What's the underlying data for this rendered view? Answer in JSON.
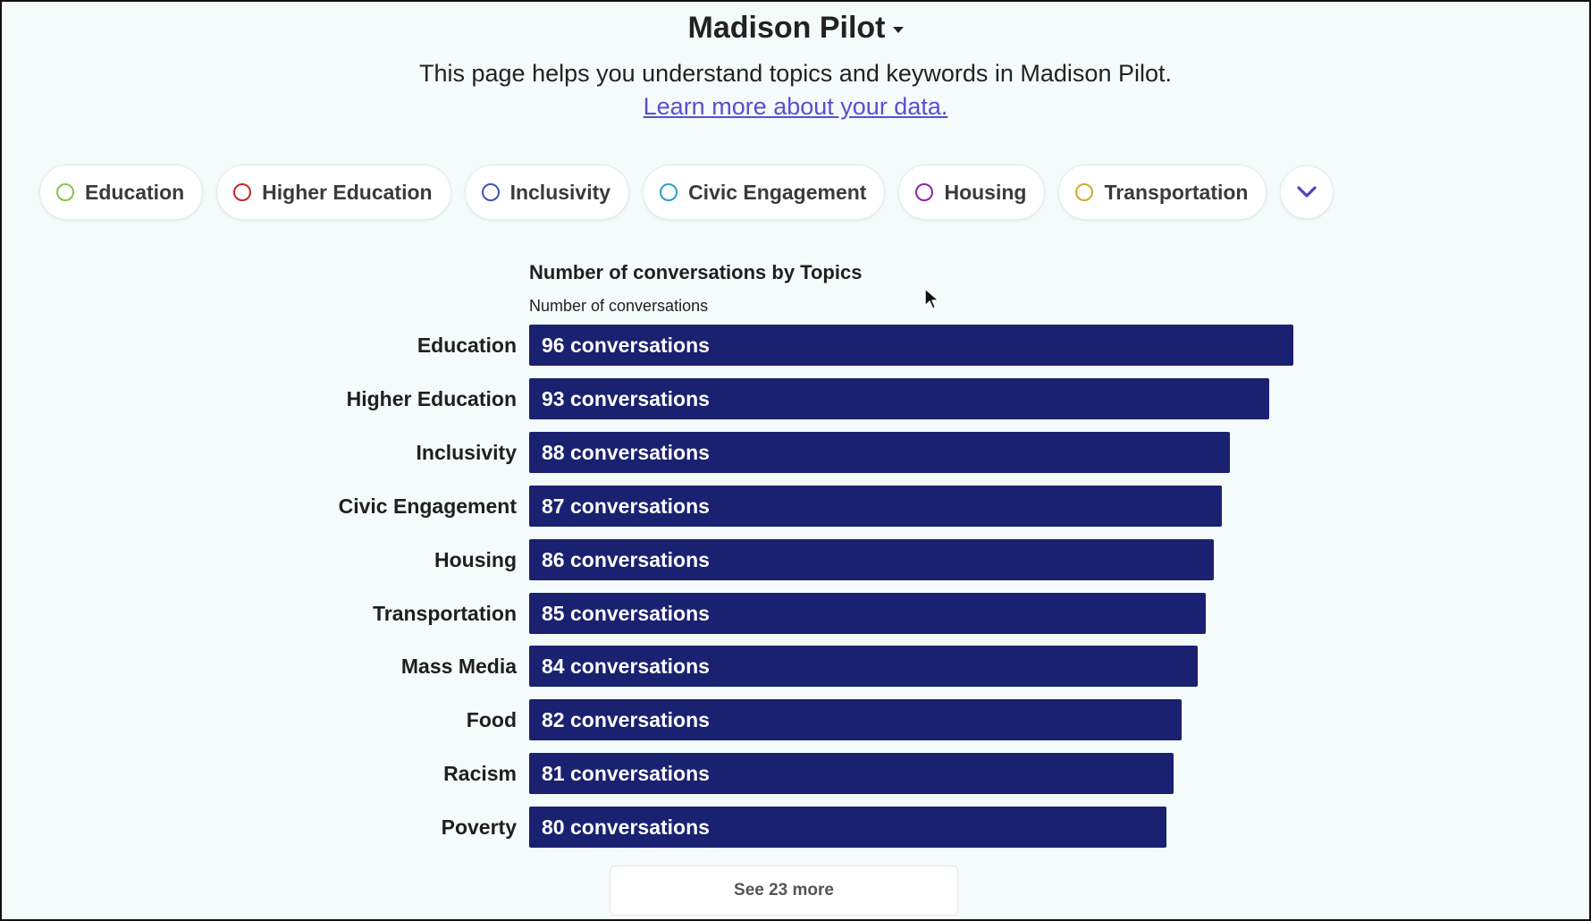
{
  "header": {
    "title": "Madison Pilot",
    "subtitle": "This page helps you understand topics and keywords in Madison Pilot.",
    "learn_more_link": "Learn more about your data."
  },
  "topic_chips": [
    {
      "label": "Education",
      "color": "#8bc34a"
    },
    {
      "label": "Higher Education",
      "color": "#c62828"
    },
    {
      "label": "Inclusivity",
      "color": "#3f51b5"
    },
    {
      "label": "Civic Engagement",
      "color": "#26a0c9"
    },
    {
      "label": "Housing",
      "color": "#8e24aa"
    },
    {
      "label": "Transportation",
      "color": "#d4a72c"
    }
  ],
  "more_chips_icon": "chevron-down-icon",
  "chart_data": {
    "type": "bar",
    "orientation": "horizontal",
    "title": "Number of conversations by Topics",
    "xlabel": "Number of conversations",
    "ylabel": "",
    "categories": [
      "Education",
      "Higher Education",
      "Inclusivity",
      "Civic Engagement",
      "Housing",
      "Transportation",
      "Mass Media",
      "Food",
      "Racism",
      "Poverty"
    ],
    "values": [
      96,
      93,
      88,
      87,
      86,
      85,
      84,
      82,
      81,
      80
    ],
    "data_labels": [
      "96 conversations",
      "93 conversations",
      "88 conversations",
      "87 conversations",
      "86 conversations",
      "85 conversations",
      "84 conversations",
      "82 conversations",
      "81 conversations",
      "80 conversations"
    ],
    "xlim": [
      0,
      96
    ],
    "bar_color": "#1a2170",
    "grid": false,
    "legend": false
  },
  "see_more_label": "See 23 more"
}
